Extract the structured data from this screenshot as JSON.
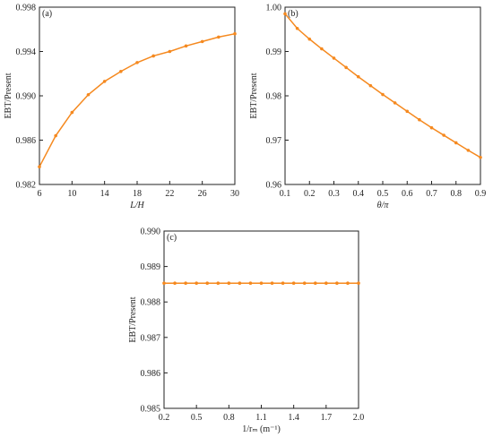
{
  "chart_data": [
    {
      "type": "line",
      "annotation": "(a)",
      "xlabel": "L/H",
      "ylabel": "EBT/Present",
      "x": [
        6,
        8,
        10,
        12,
        14,
        16,
        18,
        20,
        22,
        24,
        26,
        28,
        30
      ],
      "series": [
        {
          "color": "#f5891f",
          "values": [
            0.9836,
            0.9864,
            0.9885,
            0.9901,
            0.9913,
            0.9922,
            0.993,
            0.9936,
            0.994,
            0.9945,
            0.9949,
            0.9953,
            0.9956
          ]
        }
      ],
      "xlim": [
        6,
        30
      ],
      "xticks": [
        6,
        10,
        14,
        18,
        22,
        26,
        30
      ],
      "ylim": [
        0.982,
        0.998
      ],
      "yticks": [
        0.982,
        0.986,
        {
          "value": 0.99,
          "label": "0.990"
        },
        0.994,
        0.998
      ]
    },
    {
      "type": "line",
      "annotation": "(b)",
      "xlabel": "θ/π",
      "ylabel": "EBT/Present",
      "x": [
        0.1,
        0.15,
        0.2,
        0.25,
        0.3,
        0.35,
        0.4,
        0.45,
        0.5,
        0.55,
        0.6,
        0.65,
        0.7,
        0.75,
        0.8,
        0.85,
        0.9
      ],
      "series": [
        {
          "color": "#f5891f",
          "values": [
            0.9985,
            0.9952,
            0.9928,
            0.9906,
            0.9885,
            0.9864,
            0.9843,
            0.9823,
            0.9803,
            0.9784,
            0.9765,
            0.9746,
            0.9728,
            0.9711,
            0.9694,
            0.9677,
            0.9661
          ]
        }
      ],
      "xlim": [
        0.1,
        0.9
      ],
      "xticks": [
        0.1,
        0.2,
        0.3,
        0.4,
        0.5,
        0.6,
        0.7,
        0.8,
        0.9
      ],
      "ylim": [
        0.96,
        1.0
      ],
      "yticks": [
        0.96,
        0.97,
        0.98,
        0.99,
        {
          "value": 1.0,
          "label": "1.00"
        }
      ]
    },
    {
      "type": "line",
      "annotation": "(c)",
      "xlabel": "1/rₘ (m⁻¹)",
      "ylabel": "EBT/Present",
      "x": [
        0.2,
        0.3,
        0.4,
        0.5,
        0.6,
        0.7,
        0.8,
        0.9,
        1.0,
        1.1,
        1.2,
        1.3,
        1.4,
        1.5,
        1.6,
        1.7,
        1.8,
        1.9,
        2.0
      ],
      "series": [
        {
          "color": "#f5891f",
          "values": [
            0.98853,
            0.98853,
            0.98853,
            0.98853,
            0.98853,
            0.98853,
            0.98853,
            0.98853,
            0.98853,
            0.98853,
            0.98853,
            0.98853,
            0.98853,
            0.98853,
            0.98853,
            0.98853,
            0.98853,
            0.98853,
            0.98853
          ]
        }
      ],
      "xlim": [
        0.2,
        2.0
      ],
      "xticks": [
        0.2,
        0.5,
        0.8,
        1.1,
        1.4,
        1.7,
        {
          "value": 2.0,
          "label": "2.0"
        }
      ],
      "ylim": [
        0.985,
        0.99
      ],
      "yticks": [
        0.985,
        0.986,
        0.987,
        0.988,
        0.989,
        {
          "value": 0.99,
          "label": "0.990"
        }
      ]
    }
  ]
}
